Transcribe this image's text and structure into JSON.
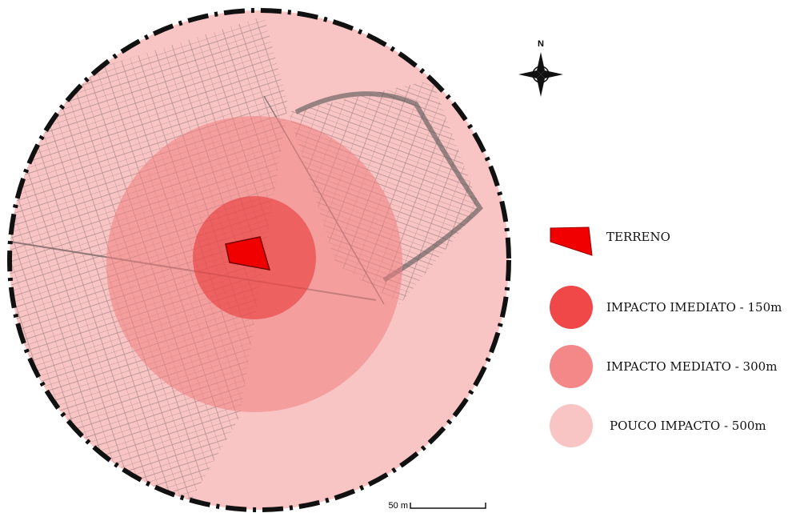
{
  "north_label": "N",
  "legend": {
    "items": [
      {
        "label": "TERRENO"
      },
      {
        "label": "IMPACTO IMEDIATO - 150m"
      },
      {
        "label": "IMPACTO MEDIATO - 300m"
      },
      {
        "label": "POUCO IMPACTO - 500m"
      }
    ]
  },
  "scale_bar": {
    "label": "50 m"
  }
}
